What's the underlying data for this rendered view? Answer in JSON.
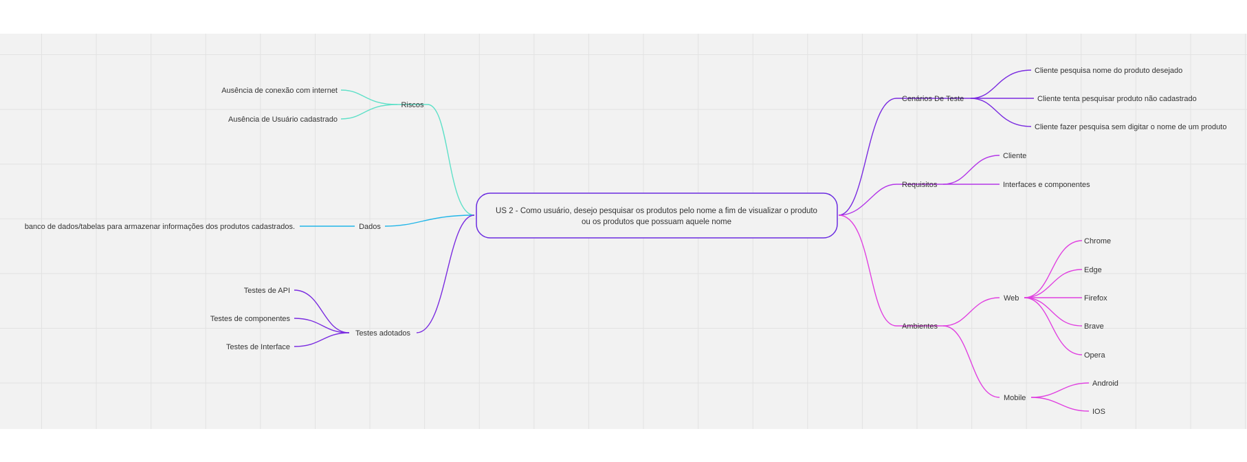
{
  "colors": {
    "teal": "#5fe0c8",
    "cyan": "#1fb5e8",
    "violet": "#7a2be0",
    "magenta": "#e040e0",
    "center_border": "#6a2be0",
    "board_bg": "#f2f2f2",
    "text": "#333333"
  },
  "mindmap": {
    "center": {
      "line1": "US 2 - Como usuário, desejo pesquisar os produtos pelo nome a fim de visualizar o produto",
      "line2": "ou os produtos que possuam aquele nome"
    },
    "left": {
      "riscos": {
        "label": "Riscos",
        "children": [
          "Ausência de conexão com internet",
          "Ausência de Usuário cadastrado"
        ]
      },
      "dados": {
        "label": "Dados",
        "children": [
          "banco de dados/tabelas para armazenar informações dos produtos cadastrados."
        ]
      },
      "testes": {
        "label": "Testes adotados",
        "children": [
          "Testes de API",
          "Testes de componentes",
          "Testes de Interface"
        ]
      }
    },
    "right": {
      "cenarios": {
        "label": "Cenários De Teste",
        "children": [
          "Cliente pesquisa nome do produto desejado",
          "Cliente tenta pesquisar produto não cadastrado",
          "Cliente fazer pesquisa sem digitar o nome de um produto"
        ]
      },
      "requisitos": {
        "label": "Requisitos",
        "children": [
          "Cliente",
          "Interfaces e componentes"
        ]
      },
      "ambientes": {
        "label": "Ambientes",
        "web": {
          "label": "Web",
          "children": [
            "Chrome",
            "Edge",
            "Firefox",
            "Brave",
            "Opera"
          ]
        },
        "mobile": {
          "label": "Mobile",
          "children": [
            "Android",
            "IOS"
          ]
        }
      }
    }
  }
}
